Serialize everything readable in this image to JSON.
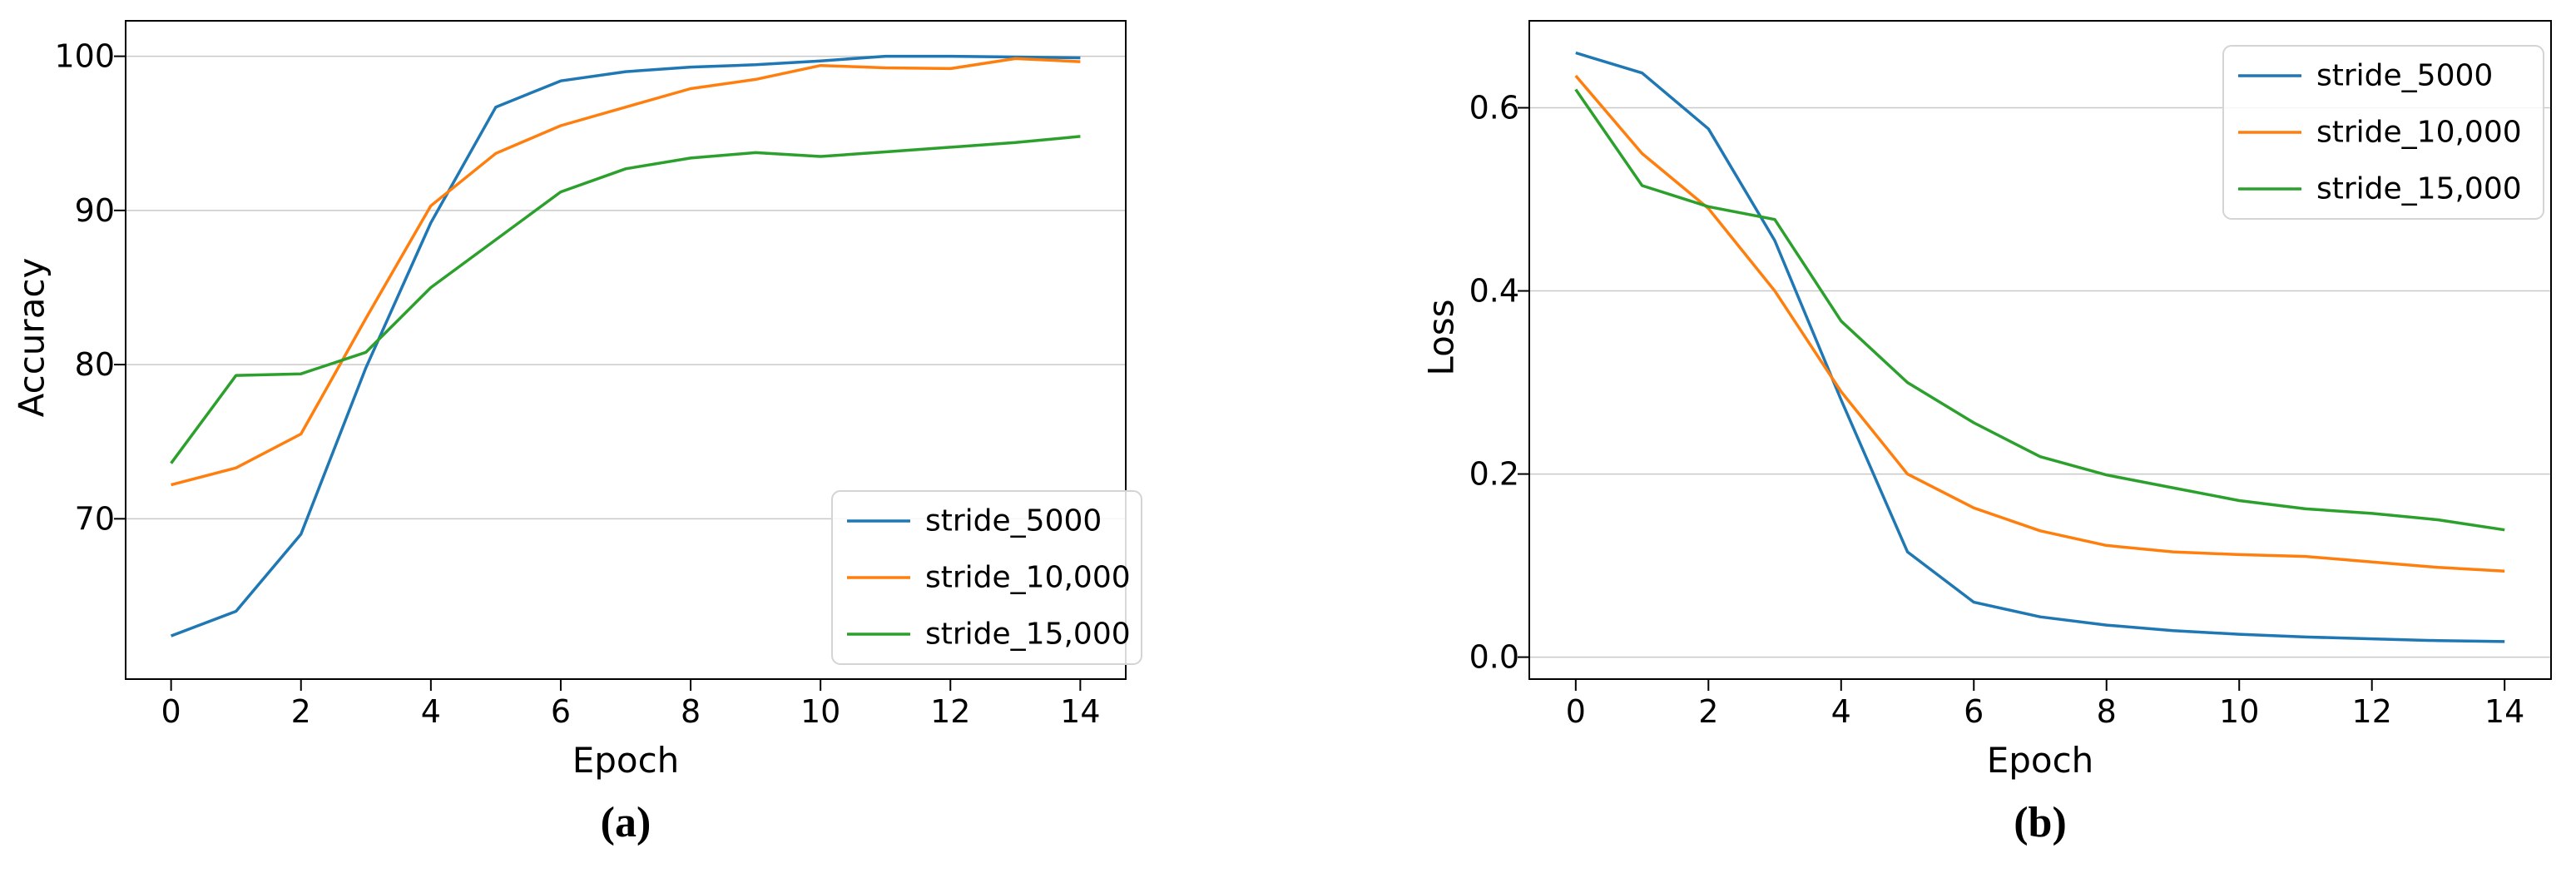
{
  "figure": {
    "background": "#ffffff",
    "spine_color": "#000000",
    "grid_color": "#c9c9c9",
    "tick_label_color": "#000000",
    "panels": [
      {
        "caption": "(a)"
      },
      {
        "caption": "(b)"
      }
    ]
  },
  "chart_data": [
    {
      "type": "line",
      "title": "",
      "xlabel": "Epoch",
      "ylabel": "Accuracy",
      "caption": "(a)",
      "x": [
        0,
        1,
        2,
        3,
        4,
        5,
        6,
        7,
        8,
        9,
        10,
        11,
        12,
        13,
        14
      ],
      "series": [
        {
          "name": "stride_5000",
          "color": "#1f77b4",
          "values": [
            62.4,
            64.0,
            69.0,
            79.8,
            89.2,
            96.7,
            98.4,
            99.0,
            99.3,
            99.45,
            99.7,
            100.0,
            100.0,
            99.95,
            99.9
          ]
        },
        {
          "name": "stride_10,000",
          "color": "#ff7f0e",
          "values": [
            72.2,
            73.3,
            75.5,
            83.0,
            90.3,
            93.7,
            95.5,
            96.7,
            97.9,
            98.5,
            99.4,
            99.25,
            99.2,
            99.85,
            99.65
          ]
        },
        {
          "name": "stride_15,000",
          "color": "#2ca02c",
          "values": [
            73.6,
            79.3,
            79.4,
            80.8,
            85.0,
            88.1,
            91.2,
            92.7,
            93.4,
            93.75,
            93.5,
            93.8,
            94.1,
            94.4,
            94.8
          ]
        }
      ],
      "xlim": [
        -0.7,
        14.7
      ],
      "ylim": [
        59.6,
        102.3
      ],
      "xticks": [
        0,
        2,
        4,
        6,
        8,
        10,
        12,
        14
      ],
      "xtick_labels": [
        "0",
        "2",
        "4",
        "6",
        "8",
        "10",
        "12",
        "14"
      ],
      "yticks": [
        70,
        80,
        90,
        100
      ],
      "ytick_labels": [
        "70",
        "80",
        "90",
        "100"
      ],
      "grid": "horizontal-only",
      "legend_position": "lower right",
      "legend_entries": [
        "stride_5000",
        "stride_10,000",
        "stride_15,000"
      ]
    },
    {
      "type": "line",
      "title": "",
      "xlabel": "Epoch",
      "ylabel": "Loss",
      "caption": "(b)",
      "x": [
        0,
        1,
        2,
        3,
        4,
        5,
        6,
        7,
        8,
        9,
        10,
        11,
        12,
        13,
        14
      ],
      "series": [
        {
          "name": "stride_5000",
          "color": "#1f77b4",
          "values": [
            0.66,
            0.638,
            0.577,
            0.455,
            0.281,
            0.115,
            0.06,
            0.044,
            0.035,
            0.029,
            0.025,
            0.022,
            0.02,
            0.018,
            0.017
          ]
        },
        {
          "name": "stride_10,000",
          "color": "#ff7f0e",
          "values": [
            0.635,
            0.55,
            0.49,
            0.4,
            0.29,
            0.2,
            0.163,
            0.138,
            0.122,
            0.115,
            0.112,
            0.11,
            0.104,
            0.098,
            0.094
          ]
        },
        {
          "name": "stride_15,000",
          "color": "#2ca02c",
          "values": [
            0.62,
            0.515,
            0.492,
            0.478,
            0.367,
            0.3,
            0.256,
            0.219,
            0.199,
            0.185,
            0.171,
            0.162,
            0.157,
            0.15,
            0.139
          ]
        }
      ],
      "xlim": [
        -0.7,
        14.7
      ],
      "ylim": [
        -0.024,
        0.695
      ],
      "xticks": [
        0,
        2,
        4,
        6,
        8,
        10,
        12,
        14
      ],
      "xtick_labels": [
        "0",
        "2",
        "4",
        "6",
        "8",
        "10",
        "12",
        "14"
      ],
      "yticks": [
        0.0,
        0.2,
        0.4,
        0.6
      ],
      "ytick_labels": [
        "0.0",
        "0.2",
        "0.4",
        "0.6"
      ],
      "grid": "horizontal-only",
      "legend_position": "upper right",
      "legend_entries": [
        "stride_5000",
        "stride_10,000",
        "stride_15,000"
      ]
    }
  ]
}
